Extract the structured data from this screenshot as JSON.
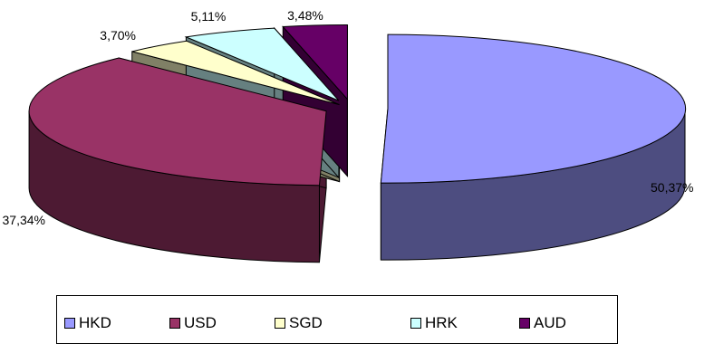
{
  "chart_data": {
    "type": "pie",
    "style": "3d-exploded",
    "title": "",
    "slices": [
      {
        "category": "HKD",
        "value": 50.37,
        "label": "50,37%",
        "color": "#9999ff",
        "side_color": "#4d4d80"
      },
      {
        "category": "USD",
        "value": 37.34,
        "label": "37,34%",
        "color": "#993366",
        "side_color": "#4d1a33"
      },
      {
        "category": "SGD",
        "value": 3.7,
        "label": "3,70%",
        "color": "#ffffcc",
        "side_color": "#808066"
      },
      {
        "category": "HRK",
        "value": 5.11,
        "label": "5,11%",
        "color": "#ccffff",
        "side_color": "#668080"
      },
      {
        "category": "AUD",
        "value": 3.48,
        "label": "3,48%",
        "color": "#660066",
        "side_color": "#330033"
      }
    ],
    "legend": {
      "position": "bottom",
      "entries": [
        "HKD",
        "USD",
        "SGD",
        "HRK",
        "AUD"
      ]
    }
  }
}
